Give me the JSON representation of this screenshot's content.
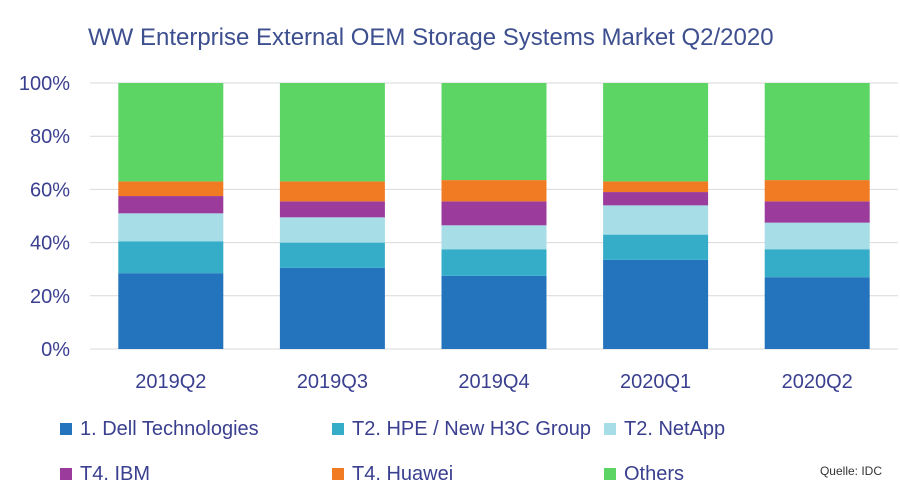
{
  "chart_data": {
    "type": "bar",
    "stacked": true,
    "title": "WW Enterprise External OEM Storage Systems Market Q2/2020",
    "categories": [
      "2019Q2",
      "2019Q3",
      "2019Q4",
      "2020Q1",
      "2020Q2"
    ],
    "ylim": [
      0,
      100
    ],
    "yticks": [
      0,
      20,
      40,
      60,
      80,
      100
    ],
    "ytick_labels": [
      "0%",
      "20%",
      "40%",
      "60%",
      "80%",
      "100%"
    ],
    "grid": true,
    "legend_position": "bottom",
    "series": [
      {
        "name": "1. Dell Technologies",
        "color": "#2474bd",
        "values": [
          28.5,
          30.5,
          27.5,
          33.5,
          27.0
        ]
      },
      {
        "name": "T2. HPE / New H3C Group",
        "color": "#35acc8",
        "values": [
          12.0,
          9.5,
          10.0,
          9.5,
          10.5
        ]
      },
      {
        "name": "T2. NetApp",
        "color": "#a6dde6",
        "values": [
          10.5,
          9.5,
          9.0,
          11.0,
          10.0
        ]
      },
      {
        "name": "T4. IBM",
        "color": "#9b3c9c",
        "values": [
          6.5,
          6.0,
          9.0,
          5.0,
          8.0
        ]
      },
      {
        "name": "T4. Huawei",
        "color": "#f07b22",
        "values": [
          5.5,
          7.5,
          8.0,
          4.0,
          8.0
        ]
      },
      {
        "name": "Others",
        "color": "#5dd565",
        "values": [
          37.0,
          37.0,
          36.5,
          37.0,
          36.5
        ]
      }
    ]
  },
  "source_note": "Quelle: IDC"
}
